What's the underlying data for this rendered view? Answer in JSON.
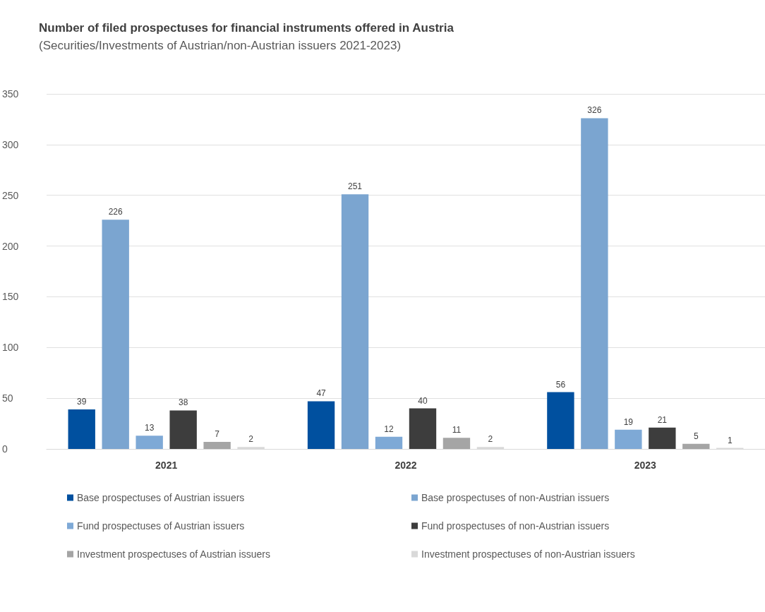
{
  "chart_data": {
    "type": "bar",
    "title": "Number of filed prospectuses for financial instruments offered in Austria",
    "subtitle": "(Securities/Investments of Austrian/non-Austrian issuers 2021-2023)",
    "categories": [
      "2021",
      "2022",
      "2023"
    ],
    "series": [
      {
        "name": "Base prospectuses of Austrian issuers",
        "color": "#00509f",
        "values": [
          39,
          47,
          56
        ]
      },
      {
        "name": "Base prospectuses of non-Austrian issuers",
        "color": "#7ba5d0",
        "values": [
          226,
          251,
          326
        ]
      },
      {
        "name": "Fund prospectuses of Austrian issuers",
        "color": "#7ea9d6",
        "values": [
          13,
          12,
          19
        ]
      },
      {
        "name": "Fund prospectuses of non-Austrian issuers",
        "color": "#3d3d3d",
        "values": [
          38,
          40,
          21
        ]
      },
      {
        "name": "Investment prospectuses of Austrian issuers",
        "color": "#a5a5a5",
        "values": [
          7,
          11,
          5
        ]
      },
      {
        "name": "Investment prospectuses of non-Austrian issuers",
        "color": "#d9d9d9",
        "values": [
          2,
          2,
          1
        ]
      }
    ],
    "ylim": [
      0,
      350
    ],
    "yticks": [
      0,
      50,
      100,
      150,
      200,
      250,
      300,
      350
    ],
    "grid": "y",
    "legend": "bottom",
    "data_labels": true
  }
}
